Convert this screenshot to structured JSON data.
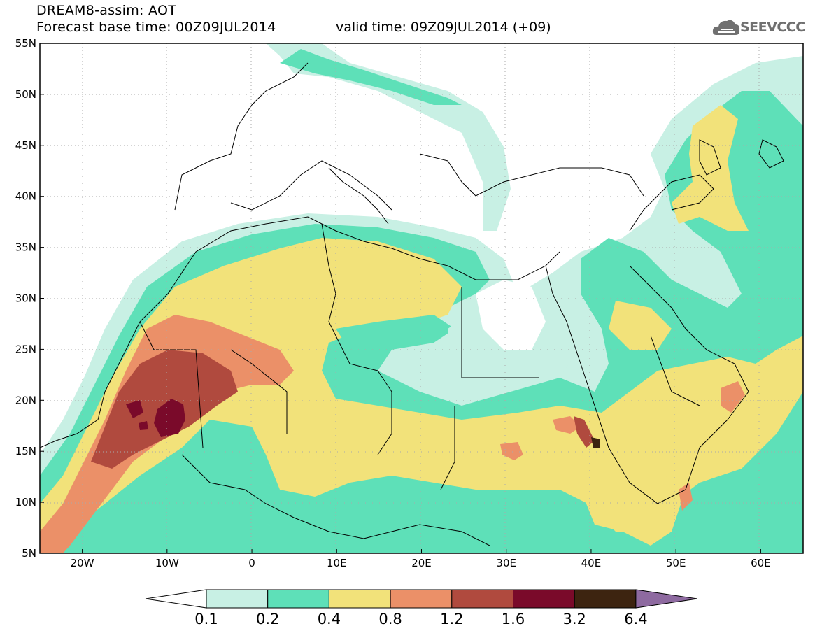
{
  "header": {
    "title_line1": "DREAM8-assim: AOT",
    "title_line2": "Forecast base time: 00Z09JUL2014",
    "valid_time": "valid time: 09Z09JUL2014 (+09)",
    "logo_text": "SEEVCCC"
  },
  "axes": {
    "lat_labels": [
      "55N",
      "50N",
      "45N",
      "40N",
      "35N",
      "30N",
      "25N",
      "20N",
      "15N",
      "10N",
      "5N"
    ],
    "lon_labels": [
      "20W",
      "10W",
      "0",
      "10E",
      "20E",
      "30E",
      "40E",
      "50E",
      "60E"
    ],
    "lat_range": [
      5,
      55
    ],
    "lon_range": [
      -25,
      65
    ]
  },
  "colorbar": {
    "labels": [
      "0.1",
      "0.2",
      "0.4",
      "0.8",
      "1.2",
      "1.6",
      "3.2",
      "6.4"
    ],
    "colors": [
      "#ffffff",
      "#c8f0e4",
      "#5ee0b8",
      "#f2e27a",
      "#eb9068",
      "#b04a3e",
      "#7a0a2a",
      "#3d2410",
      "#8e6aa0"
    ]
  },
  "chart_data": {
    "type": "heatmap",
    "variable": "AOT",
    "levels": [
      0.1,
      0.2,
      0.4,
      0.8,
      1.2,
      1.6,
      3.2,
      6.4
    ],
    "lat_range": [
      5,
      55
    ],
    "lon_range": [
      -25,
      65
    ]
  }
}
